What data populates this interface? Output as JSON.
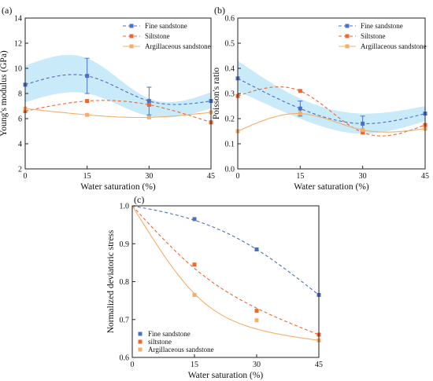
{
  "chart_data": [
    {
      "id": "a",
      "type": "line",
      "panel_label": "(a)",
      "xlabel": "Water saturation (%)",
      "ylabel": "Young's modulus (GPa)",
      "x": [
        0,
        15,
        30,
        45
      ],
      "xticks": [
        "0",
        "15",
        "30",
        "45"
      ],
      "xlim": [
        0,
        45
      ],
      "ylim": [
        2,
        14
      ],
      "yticks": [
        "2",
        "4",
        "6",
        "8",
        "10",
        "12",
        "14"
      ],
      "band": {
        "x": [
          0,
          15,
          30,
          45
        ],
        "low": [
          7.3,
          8.0,
          6.2,
          6.8
        ],
        "high": [
          10.2,
          10.8,
          7.6,
          8.1
        ]
      },
      "legend_position": "top-right",
      "series": [
        {
          "name": "Fine sandstone",
          "values": [
            8.7,
            9.4,
            7.4,
            7.4
          ],
          "error": [
            null,
            1.4,
            1.1,
            null
          ],
          "color": "#4a6fc9",
          "marker": "square",
          "dash": true
        },
        {
          "name": "Siltstone",
          "values": [
            6.6,
            7.4,
            7.1,
            5.7
          ],
          "error": [
            null,
            null,
            null,
            null
          ],
          "color": "#f0642d",
          "marker": "square",
          "dash": true
        },
        {
          "name": "Argillaceous sandstone",
          "values": [
            6.8,
            6.3,
            6.1,
            6.5
          ],
          "error": [
            null,
            null,
            null,
            null
          ],
          "color": "#f5ad6b",
          "marker": "square",
          "dash": false
        }
      ]
    },
    {
      "id": "b",
      "type": "line",
      "panel_label": "(b)",
      "xlabel": "Water saturation (%)",
      "ylabel": "Poisson's ratio",
      "x": [
        0,
        15,
        30,
        45
      ],
      "xticks": [
        "0",
        "15",
        "30",
        "45"
      ],
      "xlim": [
        0,
        45
      ],
      "ylim": [
        0.0,
        0.6
      ],
      "yticks": [
        "0.0",
        "0.1",
        "0.2",
        "0.3",
        "0.4",
        "0.5",
        "0.6"
      ],
      "band": {
        "x": [
          0,
          15,
          30,
          45
        ],
        "low": [
          0.31,
          0.2,
          0.14,
          0.19
        ],
        "high": [
          0.43,
          0.28,
          0.22,
          0.25
        ]
      },
      "legend_position": "top-right",
      "series": [
        {
          "name": "Fine sandstone",
          "values": [
            0.36,
            0.24,
            0.18,
            0.22
          ],
          "error": [
            null,
            0.03,
            0.03,
            null
          ],
          "color": "#4a6fc9",
          "marker": "square",
          "dash": true
        },
        {
          "name": "Siltstone",
          "values": [
            0.29,
            0.31,
            0.145,
            0.175
          ],
          "error": [
            null,
            null,
            null,
            null
          ],
          "color": "#f0642d",
          "marker": "square",
          "dash": true
        },
        {
          "name": "Argillaceous sandstone",
          "values": [
            0.15,
            0.22,
            0.155,
            0.16
          ],
          "error": [
            null,
            null,
            null,
            null
          ],
          "color": "#f5ad6b",
          "marker": "square",
          "dash": false
        }
      ]
    },
    {
      "id": "c",
      "type": "scatter",
      "panel_label": "(c)",
      "xlabel": "Water saturation (%)",
      "ylabel": "Normalized deviatoric stress",
      "x": [
        0,
        15,
        30,
        45
      ],
      "xticks": [
        "0",
        "15",
        "30",
        "45"
      ],
      "xlim": [
        0,
        45
      ],
      "ylim": [
        0.6,
        1.0
      ],
      "yticks": [
        "0.6",
        "0.7",
        "0.8",
        "0.9",
        "1.0"
      ],
      "legend_position": "bottom-left",
      "series": [
        {
          "name": "Fine sandstone",
          "values": [
            1.0,
            0.965,
            0.885,
            0.765
          ],
          "fit": [
            1.0,
            0.962,
            0.885,
            0.765
          ],
          "color": "#4a6fc9",
          "marker": "square",
          "dash": true
        },
        {
          "name": "siltstone",
          "values": [
            1.0,
            0.845,
            0.723,
            0.66
          ],
          "fit": [
            1.0,
            0.835,
            0.73,
            0.66
          ],
          "color": "#f0642d",
          "marker": "square",
          "dash": true
        },
        {
          "name": "Argillaceous sandstone",
          "values": [
            1.0,
            0.765,
            0.698,
            0.645
          ],
          "fit": [
            1.0,
            0.768,
            0.675,
            0.645
          ],
          "color": "#f5ad6b",
          "marker": "square",
          "dash": false
        }
      ]
    }
  ]
}
